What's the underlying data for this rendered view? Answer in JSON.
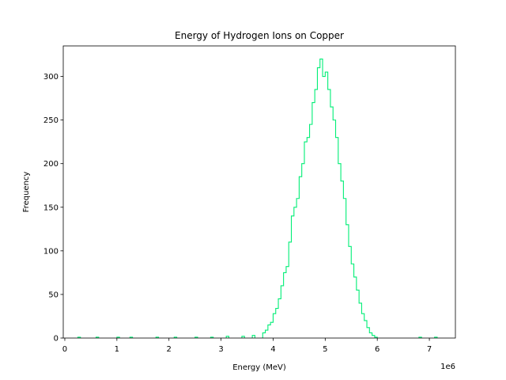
{
  "chart_data": {
    "type": "histogram",
    "histtype": "step",
    "title": "Energy of Hydrogen Ions on Copper",
    "xlabel": "Energy (MeV)",
    "ylabel": "Frequency",
    "x_offset_label": "1e6",
    "xlim": [
      -30000.0,
      7500000.0
    ],
    "ylim": [
      0,
      335
    ],
    "xticks": [
      0,
      1000000,
      2000000,
      3000000,
      4000000,
      5000000,
      6000000,
      7000000
    ],
    "xtick_labels": [
      "0",
      "1",
      "2",
      "3",
      "4",
      "5",
      "6",
      "7"
    ],
    "yticks": [
      0,
      50,
      100,
      150,
      200,
      250,
      300
    ],
    "ytick_labels": [
      "0",
      "50",
      "100",
      "150",
      "200",
      "250",
      "300"
    ],
    "grid": false,
    "series": [
      {
        "color": "#00ee76",
        "bin_start": 3800000,
        "bin_width": 50000,
        "counts": [
          6,
          9,
          15,
          18,
          28,
          34,
          45,
          60,
          75,
          82,
          110,
          140,
          150,
          160,
          185,
          200,
          225,
          230,
          245,
          270,
          285,
          310,
          320,
          300,
          305,
          285,
          265,
          250,
          230,
          200,
          180,
          160,
          130,
          105,
          85,
          70,
          55,
          40,
          28,
          20,
          12,
          6,
          3,
          1
        ],
        "sparse_points": [
          {
            "x": 250000,
            "y": 1
          },
          {
            "x": 600000,
            "y": 1
          },
          {
            "x": 1000000,
            "y": 1
          },
          {
            "x": 1250000,
            "y": 1
          },
          {
            "x": 1750000,
            "y": 1
          },
          {
            "x": 2100000,
            "y": 1
          },
          {
            "x": 2500000,
            "y": 1
          },
          {
            "x": 2800000,
            "y": 1
          },
          {
            "x": 3100000,
            "y": 2
          },
          {
            "x": 3400000,
            "y": 2
          },
          {
            "x": 3600000,
            "y": 3
          },
          {
            "x": 6800000,
            "y": 1
          },
          {
            "x": 7100000,
            "y": 1
          }
        ]
      }
    ]
  }
}
